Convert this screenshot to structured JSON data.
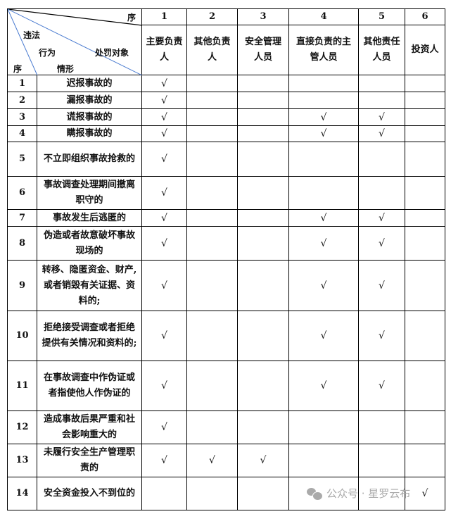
{
  "header": {
    "corner": {
      "top_label": "序",
      "violation": "违法",
      "behavior": "行为",
      "situation": "情形",
      "target": "处罚对象",
      "seq": "序"
    },
    "columns": [
      {
        "num": "1",
        "label": "主要负责人"
      },
      {
        "num": "2",
        "label": "其他负责人"
      },
      {
        "num": "3",
        "label": "安全管理人员"
      },
      {
        "num": "4",
        "label": "直接负责的主管人员"
      },
      {
        "num": "5",
        "label": "其他责任人员"
      },
      {
        "num": "6",
        "label": "投资人"
      }
    ]
  },
  "check": "√",
  "rows": [
    {
      "num": "1",
      "text": "迟报事故的",
      "checks": [
        1,
        0,
        0,
        0,
        0,
        0
      ]
    },
    {
      "num": "2",
      "text": "漏报事故的",
      "checks": [
        1,
        0,
        0,
        0,
        0,
        0
      ]
    },
    {
      "num": "3",
      "text": "谎报事故的",
      "checks": [
        1,
        0,
        0,
        1,
        1,
        0
      ]
    },
    {
      "num": "4",
      "text": "瞒报事故的",
      "checks": [
        1,
        0,
        0,
        1,
        1,
        0
      ]
    },
    {
      "num": "5",
      "text": "不立即组织事故抢救的",
      "checks": [
        1,
        0,
        0,
        0,
        0,
        0
      ]
    },
    {
      "num": "6",
      "text": "事故调查处理期间撤离职守的",
      "checks": [
        1,
        0,
        0,
        0,
        0,
        0
      ]
    },
    {
      "num": "7",
      "text": "事故发生后逃匿的",
      "checks": [
        1,
        0,
        0,
        1,
        1,
        0
      ]
    },
    {
      "num": "8",
      "text": "伪造或者故意破坏事故现场的",
      "checks": [
        1,
        0,
        0,
        1,
        1,
        0
      ]
    },
    {
      "num": "9",
      "text": "转移、隐匿资金、财产,或者销毁有关证据、资料的;",
      "checks": [
        1,
        0,
        0,
        1,
        1,
        0
      ]
    },
    {
      "num": "10",
      "text": "拒绝接受调查或者拒绝提供有关情况和资料的;",
      "checks": [
        1,
        0,
        0,
        1,
        1,
        0
      ]
    },
    {
      "num": "11",
      "text": "在事故调查中作伪证或者指使他人作伪证的",
      "checks": [
        1,
        0,
        0,
        1,
        1,
        0
      ]
    },
    {
      "num": "12",
      "text": "造成事故后果严重和社会影响重大的",
      "checks": [
        1,
        0,
        0,
        0,
        0,
        0
      ]
    },
    {
      "num": "13",
      "text": "未履行安全生产管理职责的",
      "checks": [
        1,
        1,
        1,
        0,
        0,
        0
      ]
    },
    {
      "num": "14",
      "text": "安全资金投入不到位的",
      "checks": [
        0,
        0,
        0,
        0,
        0,
        1
      ]
    }
  ],
  "watermark": "公众号 · 星罗云布",
  "colors": {
    "diagonal_blue": "#4a7bd0",
    "border": "#000000",
    "watermark": "#aaaaaa"
  }
}
